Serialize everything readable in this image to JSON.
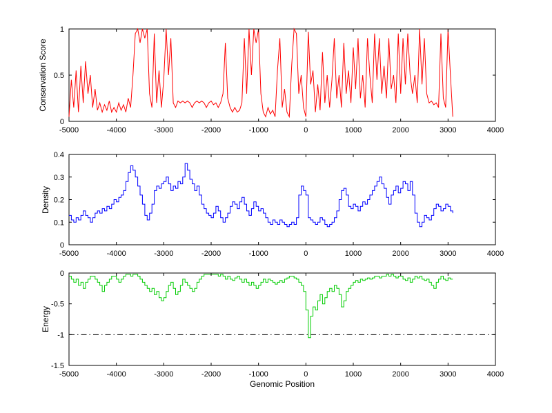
{
  "figure": {
    "background_color": "#ffffff",
    "axes_color": "#000000"
  },
  "chart_data": [
    {
      "type": "line",
      "title": "",
      "ylabel": "Conservation Score",
      "xlabel": "",
      "xlim": [
        -5000,
        4000
      ],
      "ylim": [
        0,
        1
      ],
      "xticks": [
        -5000,
        -4000,
        -3000,
        -2000,
        -1000,
        0,
        1000,
        2000,
        3000,
        4000
      ],
      "yticks": [
        0,
        0.5,
        1
      ],
      "grid": false,
      "legend": "none",
      "series": [
        {
          "name": "conservation-score",
          "color": "#ff0000",
          "stairs": false,
          "x_start": -5000,
          "x_step": 50,
          "values": [
            0.05,
            0.45,
            0.15,
            0.55,
            0.1,
            0.6,
            0.2,
            0.65,
            0.3,
            0.5,
            0.15,
            0.35,
            0.12,
            0.2,
            0.1,
            0.18,
            0.12,
            0.22,
            0.1,
            0.15,
            0.1,
            0.2,
            0.12,
            0.18,
            0.1,
            0.25,
            0.15,
            0.5,
            0.95,
            1,
            0.85,
            1,
            0.9,
            1,
            0.3,
            0.15,
            0.95,
            0.2,
            0.55,
            0.15,
            0.45,
            1,
            0.5,
            0.9,
            0.2,
            0.15,
            0.22,
            0.2,
            0.22,
            0.2,
            0.22,
            0.2,
            0.15,
            0.2,
            0.22,
            0.2,
            0.22,
            0.2,
            0.15,
            0.2,
            0.22,
            0.18,
            0.2,
            0.15,
            0.2,
            0.3,
            0.85,
            0.25,
            0.15,
            0.1,
            0.15,
            0.1,
            0.12,
            0.2,
            0.9,
            0.3,
            1,
            0.5,
            1,
            0.85,
            1,
            0.3,
            0.1,
            0.05,
            0.15,
            0.08,
            0.12,
            0.05,
            0.55,
            0.9,
            0.15,
            0.35,
            0.1,
            0.05,
            0.6,
            1,
            0.95,
            0.3,
            0.5,
            0.15,
            0.05,
            0.97,
            0.4,
            0.55,
            0.1,
            0.4,
            0.12,
            0.75,
            0.2,
            0.5,
            0.15,
            0.45,
            0.9,
            0.25,
            0.5,
            0.15,
            0.85,
            0.3,
            0.55,
            0.2,
            0.8,
            0.35,
            0.9,
            0.25,
            0.5,
            0.15,
            0.9,
            0.5,
            0.2,
            0.95,
            0.45,
            0.9,
            0.3,
            0.6,
            0.25,
            0.9,
            0.35,
            0.5,
            0.2,
            0.95,
            0.3,
            0.9,
            0.4,
            0.95,
            0.5,
            0.3,
            0.5,
            0.2,
            1,
            0.4,
            0.9,
            0.3,
            0.2,
            0.22,
            0.18,
            0.2,
            0.15,
            0.95,
            0.25,
            0.15,
            1,
            0.5,
            0.05
          ]
        }
      ]
    },
    {
      "type": "line",
      "title": "",
      "ylabel": "Density",
      "xlabel": "",
      "xlim": [
        -5000,
        4000
      ],
      "ylim": [
        0,
        0.4
      ],
      "xticks": [
        -5000,
        -4000,
        -3000,
        -2000,
        -1000,
        0,
        1000,
        2000,
        3000,
        4000
      ],
      "yticks": [
        0,
        0.1,
        0.2,
        0.3,
        0.4
      ],
      "grid": false,
      "legend": "none",
      "series": [
        {
          "name": "density",
          "color": "#0000ff",
          "stairs": true,
          "x_start": -5000,
          "x_step": 50,
          "values": [
            0.13,
            0.11,
            0.1,
            0.12,
            0.11,
            0.13,
            0.15,
            0.13,
            0.12,
            0.1,
            0.12,
            0.14,
            0.15,
            0.14,
            0.16,
            0.15,
            0.17,
            0.16,
            0.18,
            0.2,
            0.19,
            0.21,
            0.22,
            0.24,
            0.28,
            0.32,
            0.35,
            0.33,
            0.3,
            0.26,
            0.22,
            0.18,
            0.13,
            0.11,
            0.14,
            0.18,
            0.24,
            0.26,
            0.25,
            0.27,
            0.28,
            0.3,
            0.27,
            0.24,
            0.26,
            0.25,
            0.28,
            0.27,
            0.3,
            0.36,
            0.33,
            0.29,
            0.27,
            0.24,
            0.26,
            0.22,
            0.18,
            0.16,
            0.14,
            0.13,
            0.12,
            0.14,
            0.17,
            0.15,
            0.12,
            0.1,
            0.12,
            0.14,
            0.17,
            0.19,
            0.18,
            0.16,
            0.19,
            0.21,
            0.18,
            0.15,
            0.13,
            0.16,
            0.19,
            0.17,
            0.15,
            0.16,
            0.14,
            0.12,
            0.1,
            0.09,
            0.11,
            0.1,
            0.09,
            0.11,
            0.1,
            0.09,
            0.08,
            0.09,
            0.1,
            0.09,
            0.12,
            0.22,
            0.26,
            0.24,
            0.22,
            0.12,
            0.11,
            0.1,
            0.09,
            0.1,
            0.12,
            0.11,
            0.09,
            0.08,
            0.09,
            0.1,
            0.12,
            0.15,
            0.2,
            0.24,
            0.25,
            0.22,
            0.17,
            0.16,
            0.18,
            0.17,
            0.15,
            0.17,
            0.19,
            0.18,
            0.2,
            0.22,
            0.24,
            0.26,
            0.28,
            0.3,
            0.27,
            0.25,
            0.21,
            0.18,
            0.22,
            0.24,
            0.26,
            0.23,
            0.25,
            0.28,
            0.27,
            0.24,
            0.28,
            0.22,
            0.14,
            0.1,
            0.08,
            0.1,
            0.13,
            0.12,
            0.11,
            0.13,
            0.16,
            0.18,
            0.17,
            0.15,
            0.16,
            0.18,
            0.17,
            0.15,
            0.14
          ]
        }
      ]
    },
    {
      "type": "line",
      "title": "",
      "ylabel": "Energy",
      "xlabel": "Genomic Position",
      "xlim": [
        -5000,
        4000
      ],
      "ylim": [
        -1.5,
        0
      ],
      "xticks": [
        -5000,
        -4000,
        -3000,
        -2000,
        -1000,
        0,
        1000,
        2000,
        3000,
        4000
      ],
      "yticks": [
        -1.5,
        -1,
        -0.5,
        0
      ],
      "grid": false,
      "legend": "none",
      "reference_lines": [
        {
          "y": -1,
          "style": "dash-dot",
          "color": "#000000"
        }
      ],
      "series": [
        {
          "name": "energy",
          "color": "#00cc00",
          "stairs": true,
          "x_start": -5000,
          "x_step": 50,
          "values": [
            -0.05,
            -0.1,
            -0.15,
            -0.1,
            -0.2,
            -0.15,
            -0.25,
            -0.15,
            -0.1,
            -0.05,
            -0.05,
            -0.1,
            -0.15,
            -0.2,
            -0.3,
            -0.2,
            -0.15,
            -0.1,
            -0.05,
            -0.05,
            -0.1,
            -0.15,
            -0.1,
            -0.05,
            -0.02,
            -0.02,
            -0.05,
            -0.02,
            -0.02,
            -0.05,
            -0.1,
            -0.15,
            -0.2,
            -0.25,
            -0.3,
            -0.25,
            -0.35,
            -0.3,
            -0.4,
            -0.45,
            -0.4,
            -0.3,
            -0.2,
            -0.15,
            -0.25,
            -0.35,
            -0.3,
            -0.2,
            -0.1,
            -0.15,
            -0.2,
            -0.25,
            -0.3,
            -0.25,
            -0.15,
            -0.1,
            -0.05,
            -0.02,
            -0.02,
            -0.02,
            -0.02,
            -0.02,
            -0.02,
            -0.05,
            -0.02,
            -0.05,
            -0.1,
            -0.05,
            -0.1,
            -0.12,
            -0.08,
            -0.05,
            -0.1,
            -0.15,
            -0.1,
            -0.15,
            -0.2,
            -0.15,
            -0.2,
            -0.25,
            -0.2,
            -0.15,
            -0.1,
            -0.15,
            -0.1,
            -0.12,
            -0.15,
            -0.18,
            -0.15,
            -0.12,
            -0.15,
            -0.1,
            -0.08,
            -0.05,
            -0.05,
            -0.08,
            -0.1,
            -0.15,
            -0.2,
            -0.3,
            -0.6,
            -1.05,
            -0.7,
            -0.55,
            -0.6,
            -0.45,
            -0.35,
            -0.5,
            -0.4,
            -0.3,
            -0.25,
            -0.3,
            -0.2,
            -0.25,
            -0.35,
            -0.55,
            -0.45,
            -0.3,
            -0.25,
            -0.2,
            -0.15,
            -0.12,
            -0.15,
            -0.1,
            -0.12,
            -0.1,
            -0.08,
            -0.1,
            -0.08,
            -0.05,
            -0.05,
            -0.08,
            -0.05,
            -0.05,
            -0.02,
            -0.05,
            -0.02,
            -0.05,
            -0.08,
            -0.05,
            -0.05,
            -0.1,
            -0.12,
            -0.08,
            -0.15,
            -0.1,
            -0.05,
            -0.08,
            -0.05,
            -0.1,
            -0.12,
            -0.1,
            -0.15,
            -0.2,
            -0.25,
            -0.15,
            -0.1,
            -0.05,
            -0.1,
            -0.12,
            -0.08,
            -0.1,
            -0.1
          ]
        }
      ]
    }
  ]
}
